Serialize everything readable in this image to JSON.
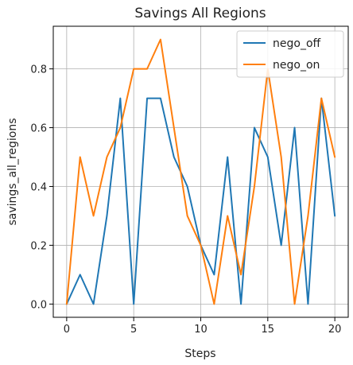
{
  "chart_data": {
    "type": "line",
    "title": "Savings All Regions",
    "xlabel": "Steps",
    "ylabel": "savings_all_regions",
    "xlim": [
      -1,
      21
    ],
    "ylim": [
      -0.045,
      0.945
    ],
    "xticks": [
      0,
      5,
      10,
      15,
      20
    ],
    "yticks": [
      0.0,
      0.2,
      0.4,
      0.6,
      0.8
    ],
    "ytick_labels": [
      "0.0",
      "0.2",
      "0.4",
      "0.6",
      "0.8"
    ],
    "grid": true,
    "legend_position": "top-right",
    "x": [
      0,
      1,
      2,
      3,
      4,
      5,
      6,
      7,
      8,
      9,
      10,
      11,
      12,
      13,
      14,
      15,
      16,
      17,
      18,
      19,
      20
    ],
    "series": [
      {
        "name": "nego_off",
        "color": "#1f77b4",
        "values": [
          0.0,
          0.1,
          0.0,
          0.3,
          0.7,
          0.0,
          0.7,
          0.7,
          0.5,
          0.4,
          0.2,
          0.1,
          0.5,
          0.0,
          0.6,
          0.5,
          0.2,
          0.6,
          0.0,
          0.7,
          0.3
        ]
      },
      {
        "name": "nego_on",
        "color": "#ff7f0e",
        "values": [
          0.0,
          0.5,
          0.3,
          0.5,
          0.6,
          0.8,
          0.8,
          0.9,
          0.6,
          0.3,
          0.2,
          0.0,
          0.3,
          0.1,
          0.4,
          0.8,
          0.5,
          0.0,
          0.3,
          0.7,
          0.5
        ]
      }
    ]
  }
}
